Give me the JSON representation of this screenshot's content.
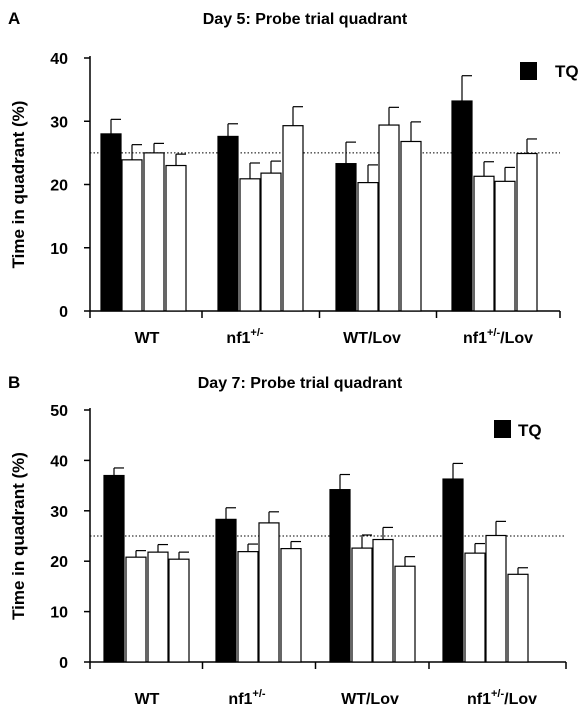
{
  "legend": {
    "label": "TQ",
    "color": "#000000"
  },
  "chart_data": [
    {
      "type": "bar",
      "panel": "A",
      "title": "Day 5: Probe trial quadrant",
      "ylabel": "Time in quadrant (%)",
      "xlabel": "",
      "ylim": [
        0,
        40
      ],
      "yticks": [
        0,
        10,
        20,
        30,
        40
      ],
      "reference_line": 25,
      "groups": [
        {
          "label": "WT",
          "sup": "",
          "suffix": "",
          "values": [
            28.0,
            23.9,
            25.0,
            23.0
          ],
          "errors": [
            2.3,
            2.4,
            1.5,
            1.8
          ]
        },
        {
          "label": "nf1",
          "sup": "+/-",
          "suffix": "",
          "values": [
            27.6,
            20.9,
            21.8,
            29.3
          ],
          "errors": [
            2.0,
            2.5,
            1.9,
            3.0
          ]
        },
        {
          "label": "WT/Lov",
          "sup": "",
          "suffix": "",
          "values": [
            23.3,
            20.3,
            29.4,
            26.8
          ],
          "errors": [
            3.4,
            2.8,
            2.8,
            3.1
          ]
        },
        {
          "label": "nf1",
          "sup": "+/-",
          "suffix": "/Lov",
          "values": [
            33.2,
            21.3,
            20.5,
            24.9
          ],
          "errors": [
            4.0,
            2.3,
            2.2,
            2.3
          ]
        }
      ]
    },
    {
      "type": "bar",
      "panel": "B",
      "title": "Day 7: Probe trial quadrant",
      "ylabel": "Time in quadrant (%)",
      "xlabel": "",
      "ylim": [
        0,
        50
      ],
      "yticks": [
        0,
        10,
        20,
        30,
        40,
        50
      ],
      "reference_line": 25,
      "groups": [
        {
          "label": "WT",
          "sup": "",
          "suffix": "",
          "values": [
            37.0,
            20.8,
            21.8,
            20.4
          ],
          "errors": [
            1.5,
            1.3,
            1.5,
            1.4
          ]
        },
        {
          "label": "nf1",
          "sup": "+/-",
          "suffix": "",
          "values": [
            28.3,
            21.9,
            27.6,
            22.5
          ],
          "errors": [
            2.3,
            1.5,
            2.2,
            1.4
          ]
        },
        {
          "label": "WT/Lov",
          "sup": "",
          "suffix": "",
          "values": [
            34.2,
            22.6,
            24.3,
            19.0
          ],
          "errors": [
            3.0,
            2.6,
            2.4,
            1.9
          ]
        },
        {
          "label": "nf1",
          "sup": "+/-",
          "suffix": "/Lov",
          "values": [
            36.3,
            21.6,
            25.1,
            17.4
          ],
          "errors": [
            3.1,
            1.9,
            2.8,
            1.3
          ]
        }
      ]
    }
  ]
}
